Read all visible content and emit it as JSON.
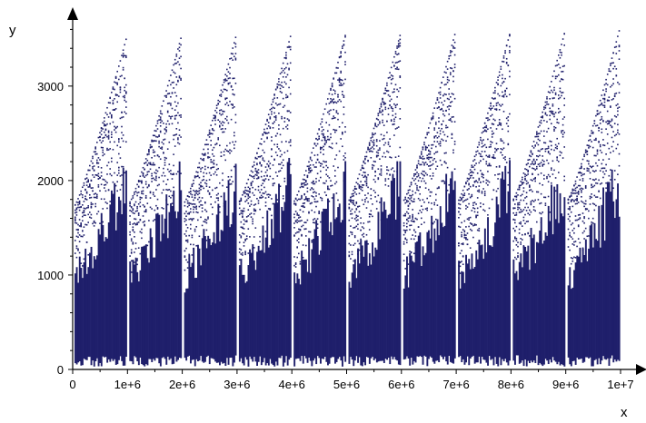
{
  "chart_data": {
    "type": "scatter",
    "xlabel": "x",
    "ylabel": "y",
    "xlim": [
      0,
      10000000
    ],
    "ylim": [
      0,
      3700
    ],
    "x_ticks": [
      0,
      1000000,
      2000000,
      3000000,
      4000000,
      5000000,
      6000000,
      7000000,
      8000000,
      9000000,
      10000000
    ],
    "x_tick_labels": [
      "0",
      "1e+6",
      "2e+6",
      "3e+6",
      "4e+6",
      "5e+6",
      "6e+6",
      "7e+6",
      "8e+6",
      "9e+6",
      "1e+7"
    ],
    "y_ticks": [
      0,
      1000,
      2000,
      3000
    ],
    "y_tick_labels": [
      "0",
      "1000",
      "2000",
      "3000"
    ],
    "grid": false,
    "point_color": "#1f1f6b",
    "segments": [
      {
        "x_start": 0,
        "x_end": 1000000,
        "y_max_start": 1750,
        "y_max_end": 3550
      },
      {
        "x_start": 1000000,
        "x_end": 2000000,
        "y_max_start": 1780,
        "y_max_end": 3560
      },
      {
        "x_start": 2000000,
        "x_end": 3000000,
        "y_max_start": 1780,
        "y_max_end": 3570
      },
      {
        "x_start": 3000000,
        "x_end": 4000000,
        "y_max_start": 1790,
        "y_max_end": 3580
      },
      {
        "x_start": 4000000,
        "x_end": 5000000,
        "y_max_start": 1790,
        "y_max_end": 3590
      },
      {
        "x_start": 5000000,
        "x_end": 6000000,
        "y_max_start": 1800,
        "y_max_end": 3590
      },
      {
        "x_start": 6000000,
        "x_end": 7000000,
        "y_max_start": 1800,
        "y_max_end": 3600
      },
      {
        "x_start": 7000000,
        "x_end": 8000000,
        "y_max_start": 1800,
        "y_max_end": 3600
      },
      {
        "x_start": 8000000,
        "x_end": 9000000,
        "y_max_start": 1810,
        "y_max_end": 3610
      },
      {
        "x_start": 9000000,
        "x_end": 10000000,
        "y_max_start": 1810,
        "y_max_end": 3640
      }
    ]
  }
}
